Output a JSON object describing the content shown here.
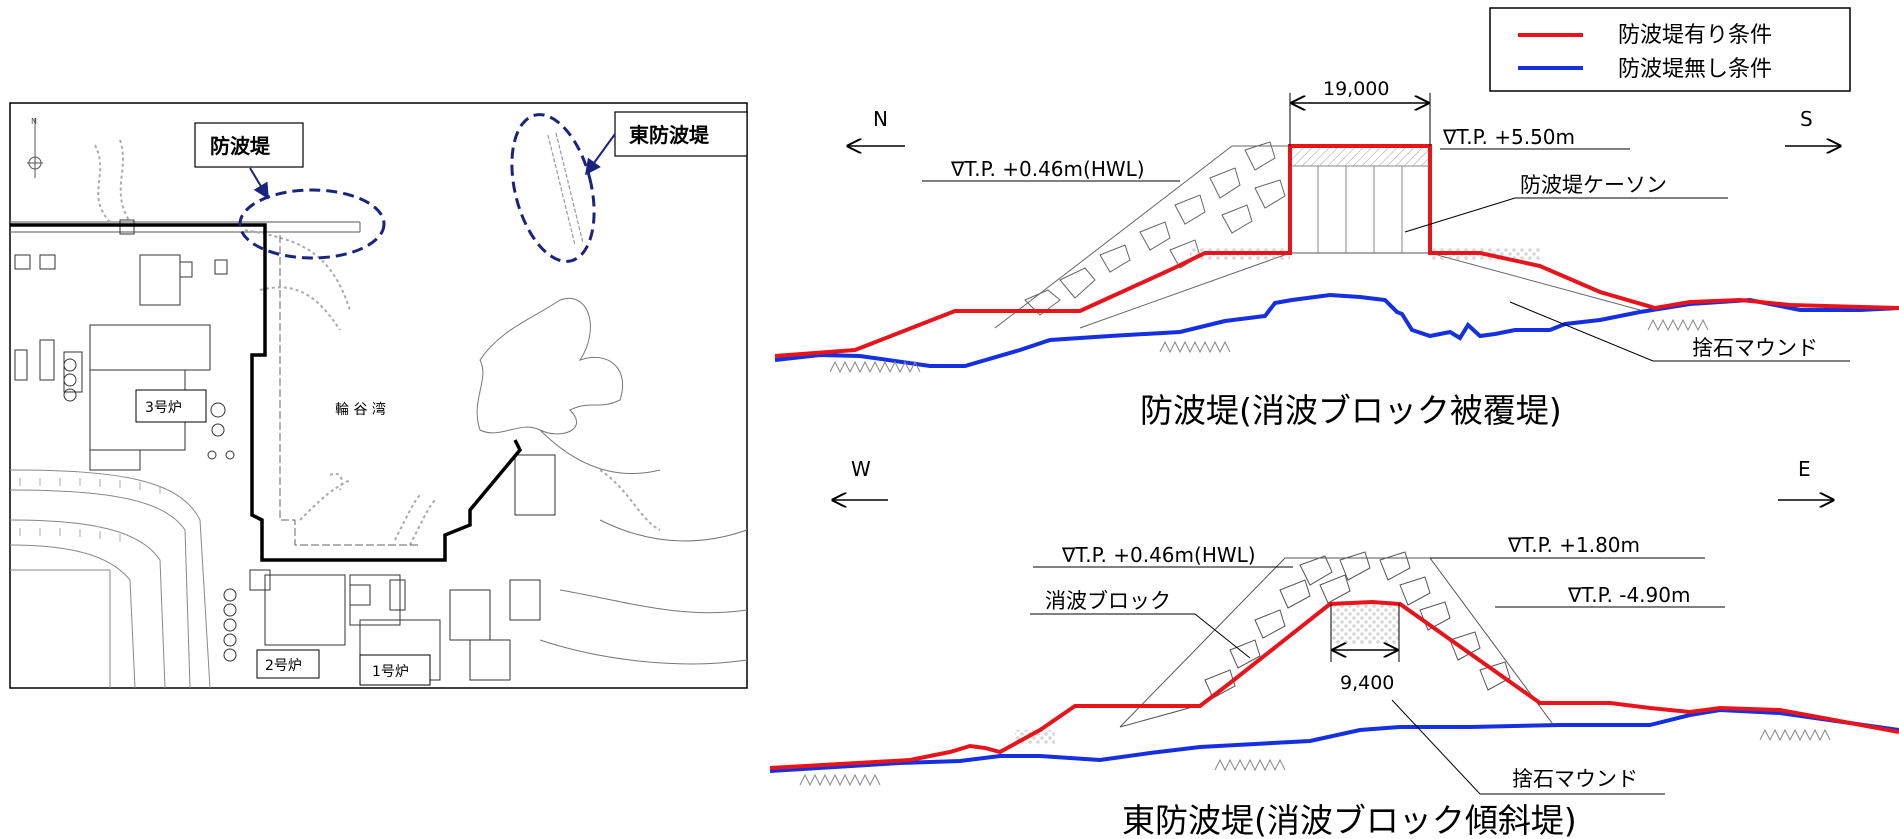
{
  "map": {
    "callout_breakwater": "防波堤",
    "callout_east_breakwater": "東防波堤",
    "bay_name": "輪 谷 湾",
    "reactor_3": "3号炉",
    "reactor_2": "2号炉",
    "reactor_1": "1号炉"
  },
  "legend": {
    "items": [
      {
        "label": "防波堤有り条件",
        "color": "#e8141c"
      },
      {
        "label": "防波堤無し条件",
        "color": "#1430e0"
      }
    ]
  },
  "section_breakwater": {
    "dir_left": "N",
    "dir_right": "S",
    "width_dim": "19,000",
    "level_top": "∇T.P. +5.50m",
    "level_hwl": "∇T.P. +0.46m(HWL)",
    "label_caisson": "防波堤ケーソン",
    "label_mound": "捨石マウンド",
    "title": "防波堤(消波ブロック被覆堤)"
  },
  "section_east": {
    "dir_left": "W",
    "dir_right": "E",
    "level_hwl": "∇T.P. +0.46m(HWL)",
    "level_top": "∇T.P. +1.80m",
    "level_low": "∇T.P. -4.90m",
    "label_block": "消波ブロック",
    "width_dim": "9,400",
    "label_mound": "捨石マウンド",
    "title": "東防波堤(消波ブロック傾斜堤)"
  }
}
